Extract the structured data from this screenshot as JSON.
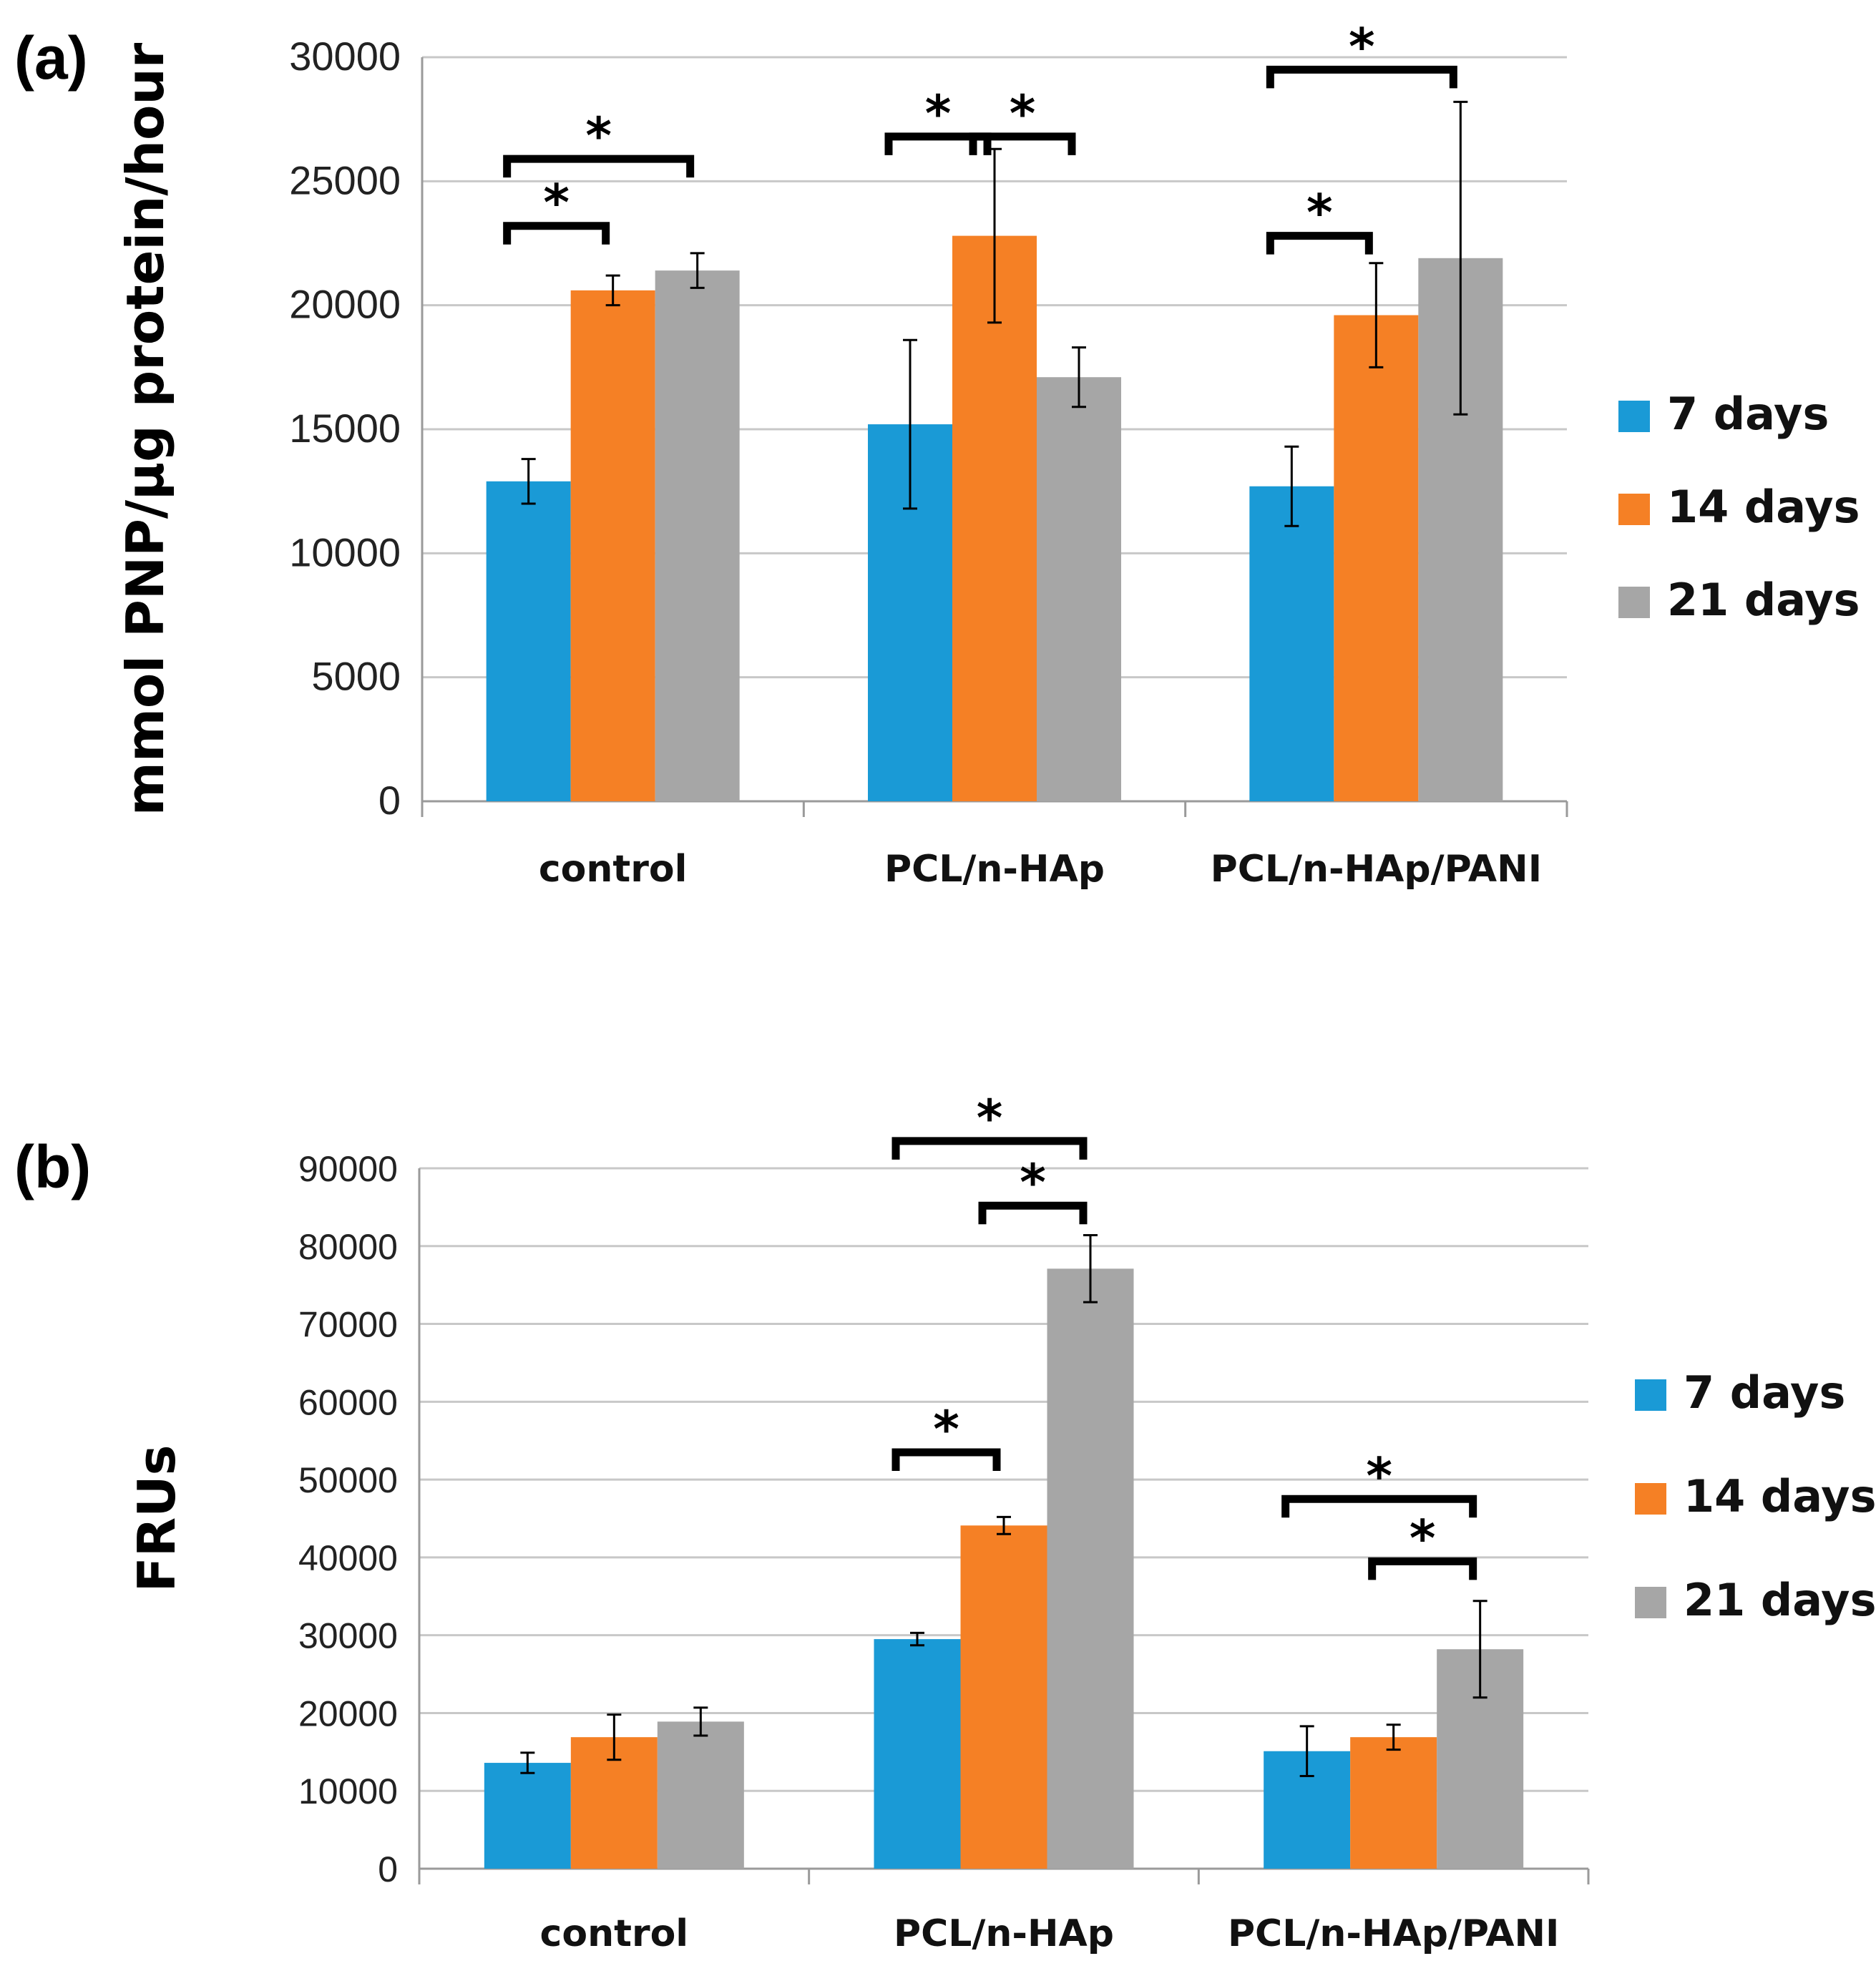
{
  "chart_data": [
    {
      "id": "a",
      "panel_label": "(a)",
      "type": "bar",
      "ylabel": "mmol PNP/µg protein/hour",
      "xlabel": "",
      "ylim": [
        0,
        30000
      ],
      "yticks": [
        0,
        5000,
        10000,
        15000,
        20000,
        25000,
        30000
      ],
      "grid": true,
      "legend_position": "right",
      "categories": [
        "control",
        "PCL/n-HAp",
        "PCL/n-HAp/PANI"
      ],
      "series": [
        {
          "name": "7 days",
          "color": "#1a9ad6",
          "values": [
            12900,
            15200,
            12700
          ],
          "errors": [
            900,
            3400,
            1600
          ]
        },
        {
          "name": "14 days",
          "color": "#f58025",
          "values": [
            20600,
            22800,
            19600
          ],
          "errors": [
            600,
            3500,
            2100
          ]
        },
        {
          "name": "21 days",
          "color": "#a6a6a6",
          "values": [
            21400,
            17100,
            21900
          ],
          "errors": [
            700,
            1200,
            6300
          ]
        }
      ],
      "significance": [
        {
          "category": 0,
          "from": 0,
          "to": 1,
          "level": 23200,
          "label": "*"
        },
        {
          "category": 0,
          "from": 0,
          "to": 2,
          "level": 25900,
          "label": "*"
        },
        {
          "category": 1,
          "from": 0,
          "to": 1,
          "level": 26800,
          "label": "*"
        },
        {
          "category": 1,
          "from": 1,
          "to": 2,
          "level": 26800,
          "label": "*"
        },
        {
          "category": 2,
          "from": 0,
          "to": 1,
          "level": 22800,
          "label": "*"
        },
        {
          "category": 2,
          "from": 0,
          "to": 2,
          "level": 29500,
          "label": "*"
        }
      ]
    },
    {
      "id": "b",
      "panel_label": "(b)",
      "type": "bar",
      "ylabel": "FRUs",
      "xlabel": "",
      "ylim": [
        0,
        90000
      ],
      "yticks": [
        0,
        10000,
        20000,
        30000,
        40000,
        50000,
        60000,
        70000,
        80000,
        90000
      ],
      "grid": true,
      "legend_position": "right",
      "categories": [
        "control",
        "PCL/n-HAp",
        "PCL/n-HAp/PANI"
      ],
      "series": [
        {
          "name": "7 days",
          "color": "#1a9ad6",
          "values": [
            13600,
            29500,
            15100
          ],
          "errors": [
            1300,
            800,
            3200
          ]
        },
        {
          "name": "14 days",
          "color": "#f58025",
          "values": [
            16900,
            44100,
            16900
          ],
          "errors": [
            2900,
            1100,
            1600
          ]
        },
        {
          "name": "21 days",
          "color": "#a6a6a6",
          "values": [
            18900,
            77100,
            28200
          ],
          "errors": [
            1800,
            4300,
            6200
          ]
        }
      ],
      "significance": [
        {
          "category": 1,
          "from": 0,
          "to": 1,
          "level": 53500,
          "label": "*"
        },
        {
          "category": 1,
          "from": 0,
          "to": 2,
          "level": 93500,
          "label": "*"
        },
        {
          "category": 1,
          "from": 1,
          "to": 2,
          "level": 85200,
          "label": "*"
        },
        {
          "category": 2,
          "from": 0,
          "to": 2,
          "level": 47500,
          "label": "*"
        },
        {
          "category": 2,
          "from": 1,
          "to": 2,
          "level": 39500,
          "label": "*"
        }
      ]
    }
  ]
}
